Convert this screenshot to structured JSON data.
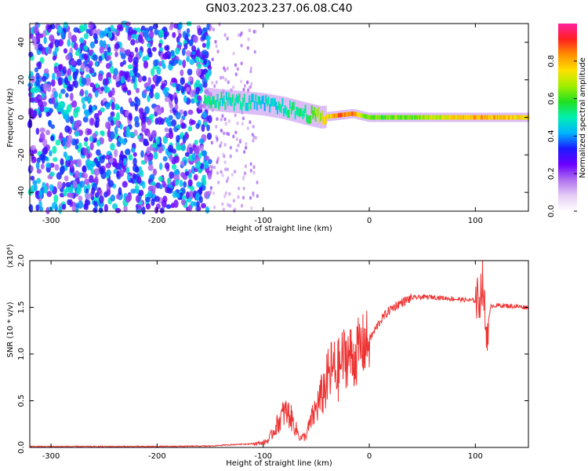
{
  "title": "GN03.2023.237.06.08.C40",
  "chart_data": [
    {
      "type": "heatmap",
      "xlabel": "Height of straight line (km)",
      "ylabel": "Frequency (Hz)",
      "xlim": [
        -320,
        150
      ],
      "ylim": [
        -50,
        50
      ],
      "xticks": [
        -300,
        -200,
        -100,
        0,
        100
      ],
      "yticks": [
        -40,
        -20,
        0,
        20,
        40
      ],
      "grid": false,
      "colorbar": {
        "label": "Normalized spectral amplitude",
        "range": [
          0,
          1
        ],
        "ticks": [
          "0.0",
          "0.2",
          "0.4",
          "0.6",
          "0.8"
        ],
        "colors": [
          "#ffffff",
          "#e6ccf5",
          "#b070f0",
          "#6a00ff",
          "#1a1aff",
          "#00b4ff",
          "#00f0b0",
          "#20e020",
          "#a0f000",
          "#ffe000",
          "#ff9000",
          "#ff2020",
          "#ff20a0"
        ]
      },
      "signal_track": {
        "x": [
          -155,
          -140,
          -120,
          -100,
          -80,
          -60,
          -45,
          -30,
          -15,
          0,
          50,
          100,
          150
        ],
        "frequency": [
          10,
          9,
          8,
          7,
          5,
          2,
          0,
          1,
          2,
          0,
          0,
          0,
          0
        ],
        "amplitude": [
          0.55,
          0.5,
          0.5,
          0.45,
          0.5,
          0.55,
          0.7,
          0.85,
          0.85,
          0.6,
          0.65,
          0.8,
          0.75
        ]
      },
      "noise_extent_x": [
        -320,
        -150
      ]
    },
    {
      "type": "line",
      "xlabel": "Height of straight line (km)",
      "ylabel": "SNR (10 * v/v)",
      "yscale_label": "(x10⁴)",
      "xlim": [
        -320,
        150
      ],
      "ylim": [
        0,
        2.0
      ],
      "xticks": [
        -300,
        -200,
        -100,
        0,
        100
      ],
      "yticks": [
        "0.0",
        "0.5",
        "1.0",
        "1.5",
        "2.0"
      ],
      "grid": false,
      "color": "#ee3333",
      "series": [
        {
          "x": [
            -320,
            -260,
            -200,
            -150,
            -130,
            -110,
            -100,
            -95,
            -90,
            -85,
            -80,
            -75,
            -70,
            -65,
            -60,
            -55,
            -50,
            -45,
            -40,
            -35,
            -30,
            -25,
            -20,
            -15,
            -10,
            -5,
            0,
            5,
            10,
            15,
            20,
            30,
            40,
            50,
            60,
            70,
            80,
            90,
            100,
            104,
            107,
            110,
            115,
            125,
            150
          ],
          "y": [
            0.01,
            0.01,
            0.01,
            0.015,
            0.03,
            0.04,
            0.05,
            0.08,
            0.18,
            0.28,
            0.38,
            0.35,
            0.22,
            0.1,
            0.12,
            0.28,
            0.42,
            0.55,
            0.7,
            0.85,
            0.8,
            0.95,
            1.0,
            0.95,
            1.05,
            1.1,
            1.15,
            1.25,
            1.35,
            1.42,
            1.48,
            1.55,
            1.6,
            1.61,
            1.61,
            1.6,
            1.59,
            1.58,
            1.57,
            1.6,
            1.8,
            1.2,
            1.52,
            1.52,
            1.5
          ]
        }
      ]
    }
  ]
}
